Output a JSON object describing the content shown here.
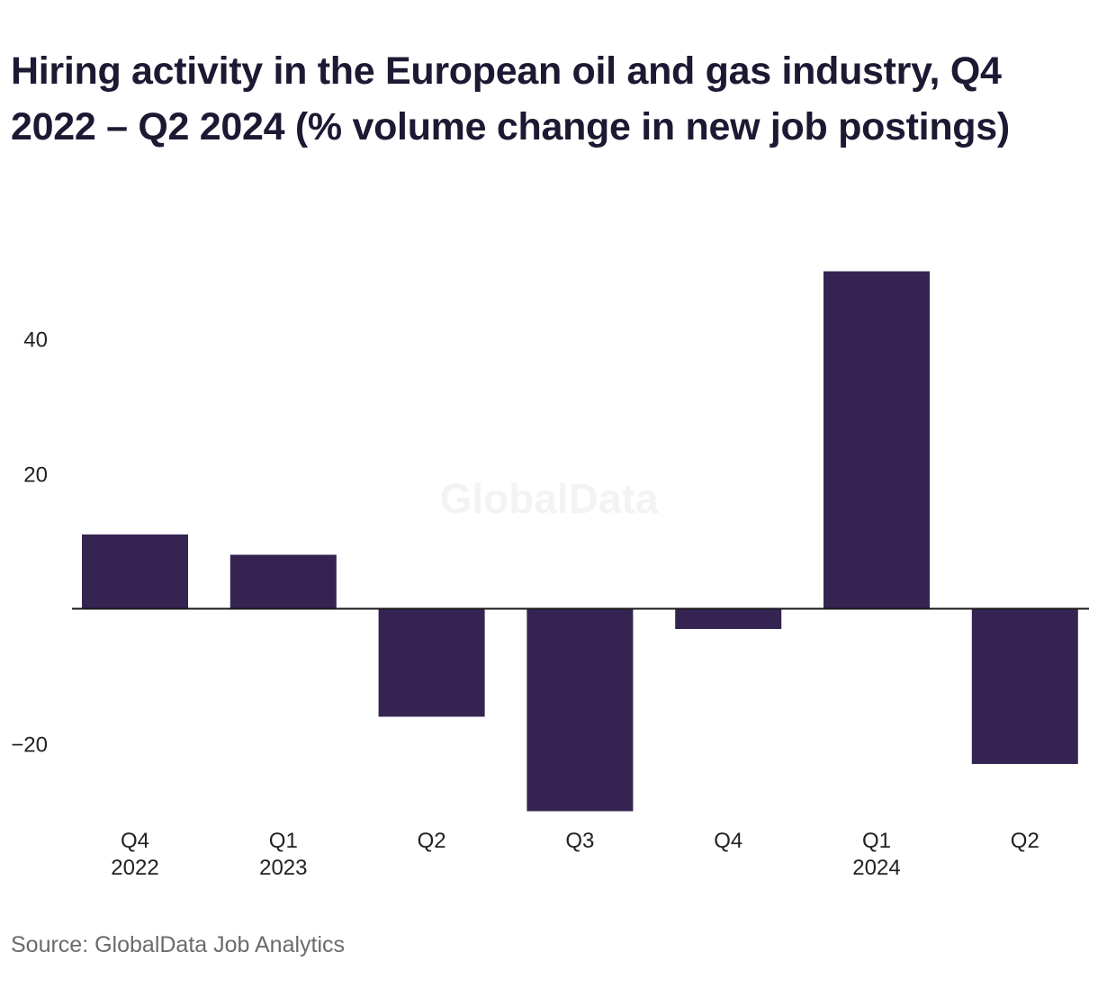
{
  "chart_data": {
    "type": "bar",
    "title": "Hiring activity in the European oil and gas industry, Q4 2022 – Q2 2024 (% volume change in new job postings)",
    "categories": [
      [
        "Q4",
        "2022"
      ],
      [
        "Q1",
        "2023"
      ],
      [
        "Q2"
      ],
      [
        "Q3"
      ],
      [
        "Q4"
      ],
      [
        "Q1",
        "2024"
      ],
      [
        "Q2"
      ]
    ],
    "values": [
      11,
      8,
      -16,
      -30,
      -3,
      50,
      -23
    ],
    "ylim": [
      -30,
      50
    ],
    "yticks": [
      {
        "value": 40,
        "label": "40"
      },
      {
        "value": 20,
        "label": "20"
      },
      {
        "value": -20,
        "label": "−20"
      }
    ],
    "bar_color": "#352452",
    "baseline": 0,
    "grid": false,
    "legend": "none"
  },
  "watermark": "GlobalData",
  "source": "Source: GlobalData Job Analytics"
}
